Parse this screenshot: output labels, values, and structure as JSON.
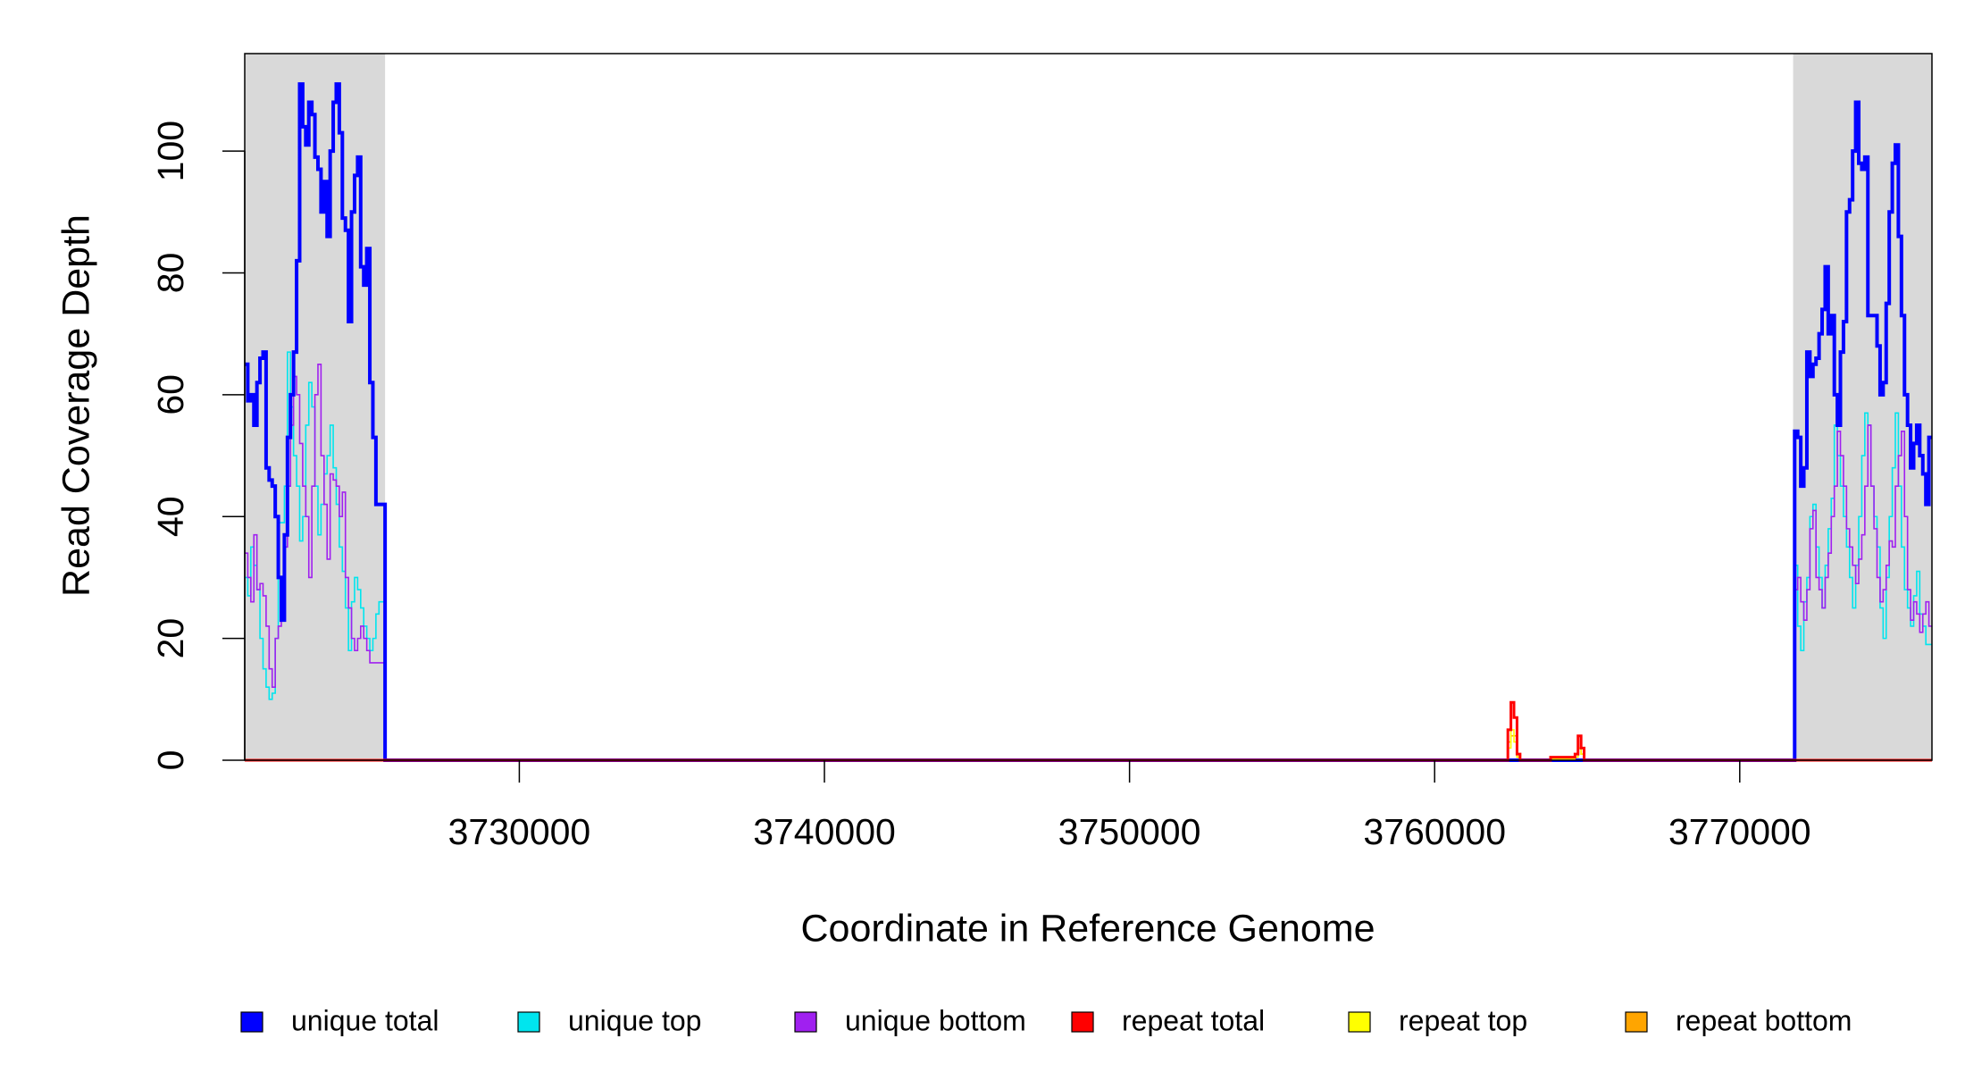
{
  "chart_data": {
    "type": "step",
    "xlabel": "Coordinate in Reference Genome",
    "ylabel": "Read Coverage Depth",
    "xlim": [
      3721000,
      3776300
    ],
    "ylim": [
      0,
      116
    ],
    "xticks": [
      3730000,
      3740000,
      3750000,
      3760000,
      3770000
    ],
    "yticks": [
      0,
      20,
      40,
      60,
      80,
      100
    ],
    "shaded_regions": [
      [
        3721000,
        3725600
      ],
      [
        3771750,
        3776300
      ]
    ],
    "shade_color": "#d9d9d9",
    "x": [
      3721000,
      3721100,
      3721200,
      3721300,
      3721400,
      3721500,
      3721600,
      3721700,
      3721800,
      3721900,
      3722000,
      3722100,
      3722200,
      3722300,
      3722400,
      3722500,
      3722600,
      3722700,
      3722800,
      3722900,
      3723000,
      3723100,
      3723200,
      3723300,
      3723400,
      3723500,
      3723600,
      3723700,
      3723800,
      3723900,
      3724000,
      3724100,
      3724200,
      3724300,
      3724400,
      3724500,
      3724600,
      3724700,
      3724800,
      3724900,
      3725000,
      3725100,
      3725200,
      3725300,
      3725400,
      3725500,
      3725600,
      3762400,
      3762500,
      3762600,
      3762700,
      3762800,
      3763800,
      3764600,
      3764700,
      3764800,
      3764900,
      3771700,
      3771800,
      3771900,
      3772000,
      3772100,
      3772200,
      3772300,
      3772400,
      3772500,
      3772600,
      3772700,
      3772800,
      3772900,
      3773000,
      3773100,
      3773200,
      3773300,
      3773400,
      3773500,
      3773600,
      3773700,
      3773800,
      3773900,
      3774000,
      3774100,
      3774200,
      3774300,
      3774400,
      3774500,
      3774600,
      3774700,
      3774800,
      3774900,
      3775000,
      3775100,
      3775200,
      3775300,
      3775400,
      3775500,
      3775600,
      3775700,
      3775800,
      3775900,
      3776000,
      3776100,
      3776200
    ],
    "series": [
      {
        "name": "unique total",
        "color": "#0000ff",
        "width": 4,
        "values": [
          65,
          59,
          60,
          55,
          62,
          66,
          67,
          48,
          46,
          45,
          40,
          30,
          23,
          37,
          53,
          60,
          67,
          82,
          111,
          104,
          101,
          108,
          106,
          99,
          97,
          90,
          95,
          86,
          100,
          108,
          111,
          103,
          89,
          87,
          72,
          90,
          96,
          99,
          81,
          78,
          84,
          62,
          53,
          42,
          42,
          42,
          0,
          0,
          0,
          0,
          0,
          0,
          0,
          0,
          0,
          0,
          0,
          0,
          54,
          53,
          45,
          48,
          67,
          63,
          65,
          66,
          70,
          74,
          81,
          70,
          73,
          60,
          55,
          67,
          72,
          90,
          92,
          100,
          108,
          98,
          97,
          99,
          73,
          73,
          73,
          68,
          60,
          62,
          75,
          90,
          98,
          101,
          86,
          73,
          60,
          55,
          48,
          52,
          55,
          50,
          47,
          42,
          53
        ]
      },
      {
        "name": "unique top",
        "color": "#00e5ee",
        "width": 1.6,
        "values": [
          30,
          27,
          35,
          32,
          28,
          20,
          15,
          12,
          10,
          11,
          20,
          39,
          39,
          45,
          67,
          58,
          50,
          45,
          36,
          40,
          55,
          62,
          58,
          45,
          37,
          42,
          47,
          50,
          55,
          48,
          42,
          35,
          31,
          25,
          18,
          26,
          30,
          28,
          25,
          22,
          20,
          18,
          20,
          24,
          26,
          26,
          0,
          0,
          0,
          0,
          0,
          0,
          0,
          0,
          0,
          0,
          0,
          0,
          32,
          22,
          18,
          26,
          30,
          40,
          42,
          35,
          30,
          25,
          32,
          38,
          43,
          55,
          50,
          45,
          40,
          35,
          30,
          25,
          32,
          40,
          50,
          57,
          55,
          45,
          40,
          35,
          25,
          20,
          30,
          40,
          48,
          57,
          45,
          35,
          28,
          25,
          22,
          27,
          31,
          24,
          22,
          19,
          19
        ]
      },
      {
        "name": "unique bottom",
        "color": "#a020f0",
        "width": 1.6,
        "values": [
          34,
          30,
          26,
          37,
          28,
          29,
          27,
          22,
          15,
          12,
          20,
          22,
          28,
          35,
          45,
          55,
          63,
          60,
          52,
          45,
          40,
          30,
          45,
          60,
          65,
          50,
          42,
          33,
          47,
          46,
          45,
          40,
          44,
          30,
          25,
          20,
          18,
          20,
          22,
          20,
          18,
          16,
          16,
          16,
          16,
          16,
          0,
          0,
          0,
          0,
          0,
          0,
          0,
          0,
          0,
          0,
          0,
          0,
          28,
          30,
          26,
          23,
          28,
          38,
          41,
          30,
          28,
          25,
          30,
          34,
          40,
          45,
          54,
          50,
          45,
          38,
          35,
          32,
          29,
          33,
          37,
          45,
          55,
          45,
          38,
          30,
          26,
          28,
          32,
          36,
          35,
          45,
          50,
          54,
          40,
          28,
          23,
          26,
          24,
          21,
          24,
          26,
          22
        ]
      },
      {
        "name": "repeat total",
        "color": "#ff0000",
        "width": 3,
        "values": [
          0,
          0,
          0,
          0,
          0,
          0,
          0,
          0,
          0,
          0,
          0,
          0,
          0,
          0,
          0,
          0,
          0,
          0,
          0,
          0,
          0,
          0,
          0,
          0,
          0,
          0,
          0,
          0,
          0,
          0,
          0,
          0,
          0,
          0,
          0,
          0,
          0,
          0,
          0,
          0,
          0,
          0,
          0,
          0,
          0,
          0,
          0,
          5,
          9.5,
          7,
          1,
          0,
          0.5,
          1,
          4,
          2,
          0,
          0,
          0,
          0,
          0,
          0,
          0,
          0,
          0,
          0,
          0,
          0,
          0,
          0,
          0,
          0,
          0,
          0,
          0,
          0,
          0,
          0,
          0,
          0,
          0,
          0,
          0,
          0,
          0,
          0,
          0,
          0,
          0,
          0,
          0,
          0,
          0,
          0,
          0,
          0,
          0,
          0,
          0,
          0,
          0,
          0,
          0
        ]
      },
      {
        "name": "repeat top",
        "color": "#ffff00",
        "width": 1.6,
        "values": [
          0,
          0,
          0,
          0,
          0,
          0,
          0,
          0,
          0,
          0,
          0,
          0,
          0,
          0,
          0,
          0,
          0,
          0,
          0,
          0,
          0,
          0,
          0,
          0,
          0,
          0,
          0,
          0,
          0,
          0,
          0,
          0,
          0,
          0,
          0,
          0,
          0,
          0,
          0,
          0,
          0,
          0,
          0,
          0,
          0,
          0,
          0,
          2,
          5,
          3,
          0.5,
          0,
          0.2,
          0.5,
          2,
          1,
          0,
          0,
          0,
          0,
          0,
          0,
          0,
          0,
          0,
          0,
          0,
          0,
          0,
          0,
          0,
          0,
          0,
          0,
          0,
          0,
          0,
          0,
          0,
          0,
          0,
          0,
          0,
          0,
          0,
          0,
          0,
          0,
          0,
          0,
          0,
          0,
          0,
          0,
          0,
          0,
          0,
          0,
          0,
          0,
          0,
          0,
          0
        ]
      },
      {
        "name": "repeat bottom",
        "color": "#ffa500",
        "width": 1.6,
        "values": [
          0,
          0,
          0,
          0,
          0,
          0,
          0,
          0,
          0,
          0,
          0,
          0,
          0,
          0,
          0,
          0,
          0,
          0,
          0,
          0,
          0,
          0,
          0,
          0,
          0,
          0,
          0,
          0,
          0,
          0,
          0,
          0,
          0,
          0,
          0,
          0,
          0,
          0,
          0,
          0,
          0,
          0,
          0,
          0,
          0,
          0,
          0,
          3,
          4,
          4,
          0.5,
          0,
          0.3,
          0.5,
          2,
          1,
          0,
          0,
          0,
          0,
          0,
          0,
          0,
          0,
          0,
          0,
          0,
          0,
          0,
          0,
          0,
          0,
          0,
          0,
          0,
          0,
          0,
          0,
          0,
          0,
          0,
          0,
          0,
          0,
          0,
          0,
          0,
          0,
          0,
          0,
          0,
          0,
          0,
          0,
          0,
          0,
          0,
          0,
          0,
          0,
          0,
          0,
          0
        ]
      }
    ]
  }
}
